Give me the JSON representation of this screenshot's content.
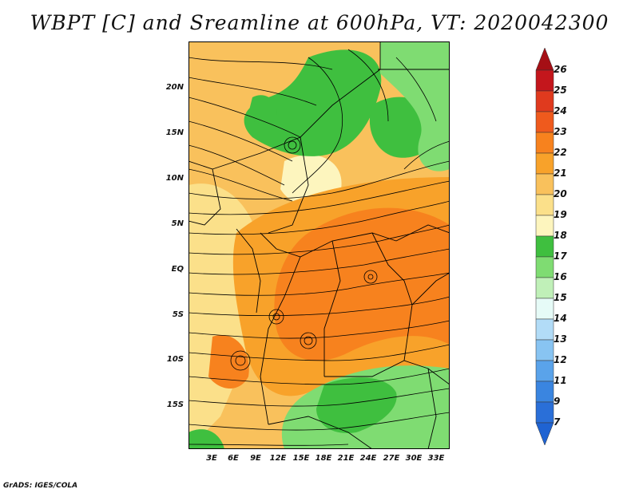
{
  "title": "WBPT [C] and Sreamline at 600hPa, VT: 2020042300",
  "footer": "GrADS: IGES/COLA",
  "lat_ticks": [
    "20N",
    "15N",
    "10N",
    "5N",
    "EQ",
    "5S",
    "10S",
    "15S"
  ],
  "lon_ticks": [
    "3E",
    "6E",
    "9E",
    "12E",
    "15E",
    "18E",
    "21E",
    "24E",
    "27E",
    "30E",
    "33E"
  ],
  "colorbar": {
    "labels": [
      "26",
      "25",
      "24",
      "23",
      "22",
      "21",
      "20",
      "19",
      "18",
      "17",
      "16",
      "15",
      "14",
      "13",
      "12",
      "11",
      "9",
      "7"
    ],
    "colors": {
      "c26": "#a50f15",
      "c25": "#c4161c",
      "c24": "#e03a1e",
      "c23": "#ef5a1d",
      "c22": "#f7821e",
      "c21": "#f8a22a",
      "c20": "#f9c15c",
      "c19": "#fbe08a",
      "c18": "#fdf5be",
      "c17": "#3fbf3f",
      "c16": "#7fdc72",
      "c15": "#c0f0b8",
      "c14": "#e6fbf7",
      "c13": "#b2dcf7",
      "c12": "#88c4f2",
      "c11": "#5aa3ea",
      "c9": "#3a85e0",
      "c7": "#1f63d2"
    }
  }
}
